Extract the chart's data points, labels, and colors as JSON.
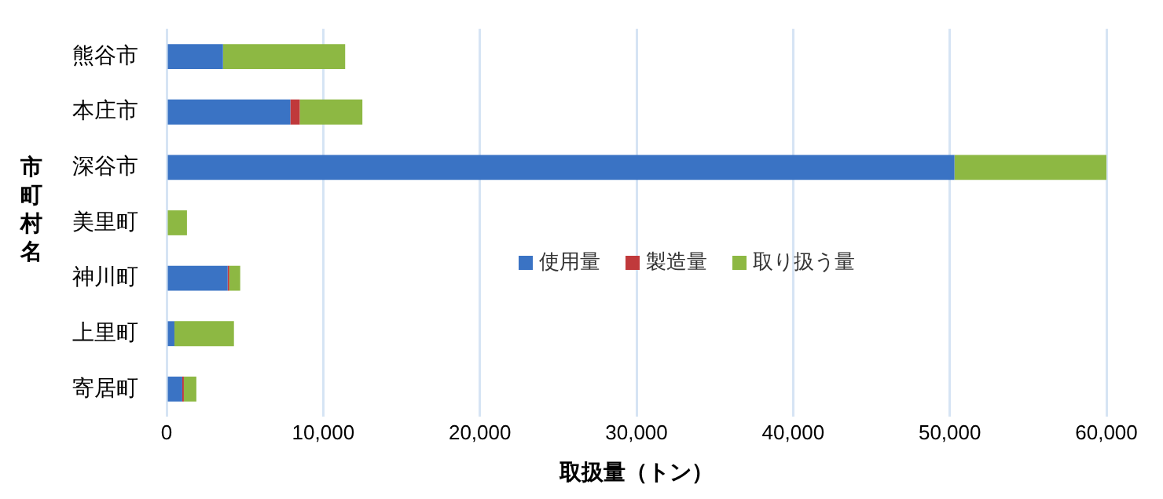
{
  "chart_data": {
    "type": "bar",
    "orientation": "horizontal",
    "stacked": true,
    "xlabel": "取扱量（トン）",
    "ylabel": "市町村名",
    "categories": [
      "熊谷市",
      "本庄市",
      "深谷市",
      "美里町",
      "神川町",
      "上里町",
      "寄居町"
    ],
    "series": [
      {
        "name": "使用量",
        "color": "#3a73c4",
        "values": [
          3600,
          7900,
          50300,
          null,
          3900,
          500,
          1000
        ]
      },
      {
        "name": "製造量",
        "color": "#c0393b",
        "values": [
          0,
          600,
          0,
          0,
          100,
          0,
          100
        ]
      },
      {
        "name": "取り扱う量",
        "color": "#8db843",
        "values": [
          7800,
          4000,
          9700,
          1300,
          700,
          3800,
          800
        ]
      }
    ],
    "xlim": [
      0,
      60000
    ],
    "xticks": [
      {
        "value": 0,
        "label": "0"
      },
      {
        "value": 10000,
        "label": "10,000"
      },
      {
        "value": 20000,
        "label": "20,000"
      },
      {
        "value": 30000,
        "label": "30,000"
      },
      {
        "value": 40000,
        "label": "40,000"
      },
      {
        "value": 50000,
        "label": "50,000"
      },
      {
        "value": 60000,
        "label": "60,000"
      }
    ],
    "grid": "x",
    "legend": "right"
  }
}
